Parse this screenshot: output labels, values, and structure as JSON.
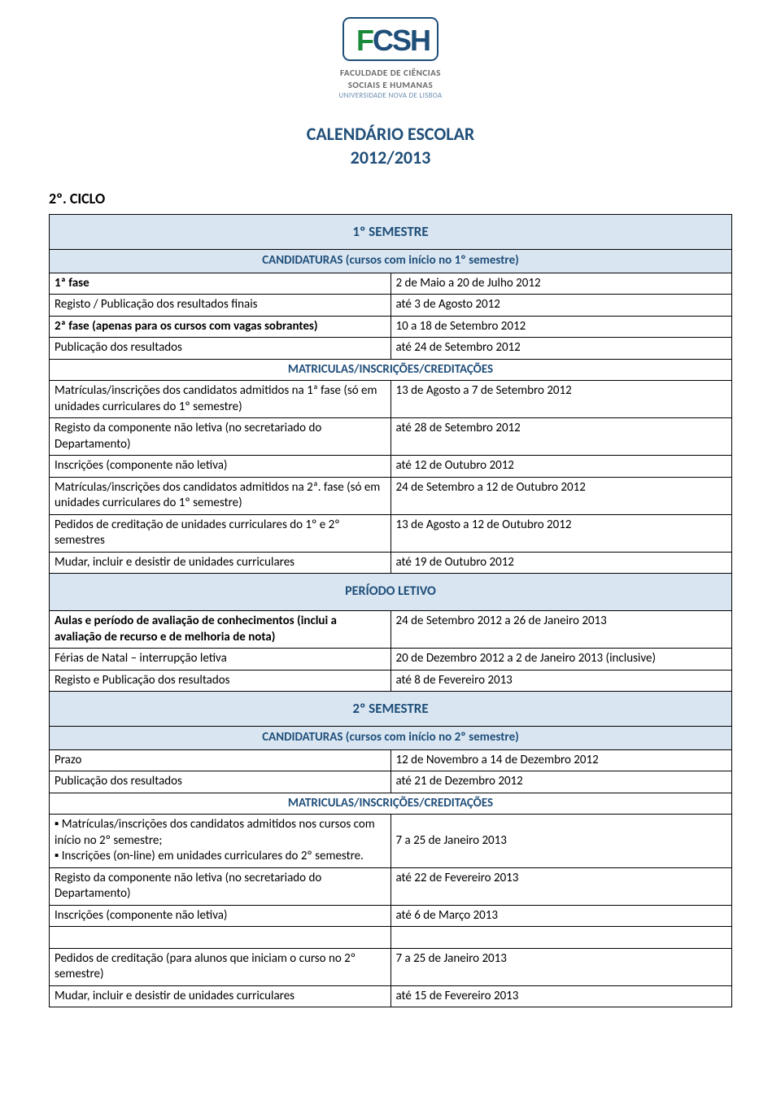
{
  "logo": {
    "fac_line1": "FACULDADE DE CIÊNCIAS",
    "fac_line2": "SOCIAIS E HUMANAS",
    "univ": "UNIVERSIDADE NOVA DE LISBOA"
  },
  "title_line1": "CALENDÁRIO ESCOLAR",
  "title_line2": "2012/2013",
  "ciclo": "2º. CICLO",
  "sem1_header": "1º SEMESTRE",
  "cand1_header": "CANDIDATURAS (cursos com início no 1º semestre)",
  "cand1_rows": [
    {
      "l": "1ª fase",
      "lb": true,
      "r": "2 de Maio a 20 de Julho 2012"
    },
    {
      "l": "Registo / Publicação dos resultados finais",
      "r": "até 3 de Agosto 2012"
    },
    {
      "l": "2ª fase (apenas para os cursos com vagas sobrantes)",
      "lb": true,
      "r": "10 a 18 de Setembro 2012"
    },
    {
      "l": "Publicação dos resultados",
      "r": "até 24 de Setembro 2012"
    }
  ],
  "mat1_header": "MATRICULAS/INSCRIÇÕES/CREDITAÇÕES",
  "mat1_rows": [
    {
      "l": "Matrículas/inscrições dos candidatos admitidos na 1ª fase (só em unidades curriculares do 1º semestre)",
      "r": "13 de Agosto a 7 de Setembro 2012"
    },
    {
      "l": "Registo da componente não letiva (no secretariado do Departamento)",
      "r": "até 28 de Setembro 2012"
    },
    {
      "l": "Inscrições (componente não letiva)",
      "r": "até 12 de Outubro 2012"
    },
    {
      "l": "Matrículas/inscrições dos candidatos admitidos na 2ª. fase (só em unidades curriculares do 1º semestre)",
      "r": "24 de Setembro a 12 de Outubro 2012"
    },
    {
      "l": "Pedidos de creditação de unidades curriculares do 1º e 2º semestres",
      "r": "13 de Agosto a 12 de Outubro 2012"
    },
    {
      "l": "Mudar, incluir e desistir de unidades curriculares",
      "r": "até 19 de Outubro 2012"
    }
  ],
  "periodo_header": "PERÍODO LETIVO",
  "periodo_rows": [
    {
      "l": "Aulas e período de avaliação de conhecimentos (inclui a avaliação de recurso e de melhoria de nota)",
      "lb": true,
      "r": "24 de Setembro 2012 a 26 de Janeiro 2013"
    },
    {
      "l": "Férias de Natal – interrupção letiva",
      "r": "20 de Dezembro  2012 a 2 de Janeiro 2013 (inclusive)"
    },
    {
      "l": "Registo e Publicação dos resultados",
      "r": "até 8 de Fevereiro 2013"
    }
  ],
  "sem2_header": "2º SEMESTRE",
  "cand2_header": "CANDIDATURAS (cursos com início no 2º semestre)",
  "cand2_rows": [
    {
      "l": "Prazo",
      "r": "12 de Novembro a 14 de Dezembro 2012"
    },
    {
      "l": "Publicação dos resultados",
      "r": "até 21 de Dezembro 2012"
    }
  ],
  "mat2_header": "MATRICULAS/INSCRIÇÕES/CREDITAÇÕES",
  "mat2_row1": {
    "l": "▪ Matrículas/inscrições dos candidatos admitidos nos cursos com início no 2º semestre;\n▪ Inscrições (on-line) em unidades curriculares do 2º semestre.",
    "r": "7 a 25 de Janeiro 2013"
  },
  "mat2_rows": [
    {
      "l": "Registo da componente não letiva (no secretariado do Departamento)",
      "r": "até 22 de Fevereiro 2013"
    },
    {
      "l": "Inscrições (componente não letiva)",
      "r": "até 6 de Março 2013"
    }
  ],
  "mat2_rows2": [
    {
      "l": "Pedidos de creditação (para alunos que iniciam o curso no 2º semestre)",
      "r": "7 a 25 de Janeiro 2013"
    },
    {
      "l": "Mudar, incluir e desistir de unidades curriculares",
      "r": "até 15 de Fevereiro 2013"
    }
  ],
  "colors": {
    "header_bg": "#d9e6f2",
    "header_text": "#1f4e79",
    "border": "#000000",
    "body_text": "#000000"
  }
}
